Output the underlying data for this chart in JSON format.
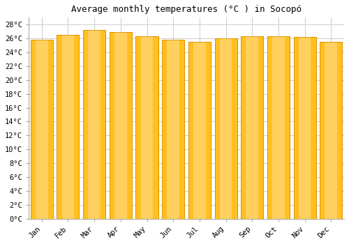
{
  "title": "Average monthly temperatures (°C ) in Socopó",
  "months": [
    "Jan",
    "Feb",
    "Mar",
    "Apr",
    "May",
    "Jun",
    "Jul",
    "Aug",
    "Sep",
    "Oct",
    "Nov",
    "Dec"
  ],
  "values": [
    25.8,
    26.5,
    27.2,
    26.9,
    26.3,
    25.8,
    25.5,
    26.0,
    26.3,
    26.3,
    26.2,
    25.5
  ],
  "bar_color_top": "#FFC020",
  "bar_color_bottom": "#FFB000",
  "bar_edge_color": "#E09000",
  "background_color": "#FFFFFF",
  "plot_bg_color": "#FFFFFF",
  "grid_color": "#CCCCCC",
  "ylim": [
    0,
    29
  ],
  "ytick_step": 2,
  "title_fontsize": 9,
  "tick_fontsize": 7.5,
  "bar_width": 0.85
}
